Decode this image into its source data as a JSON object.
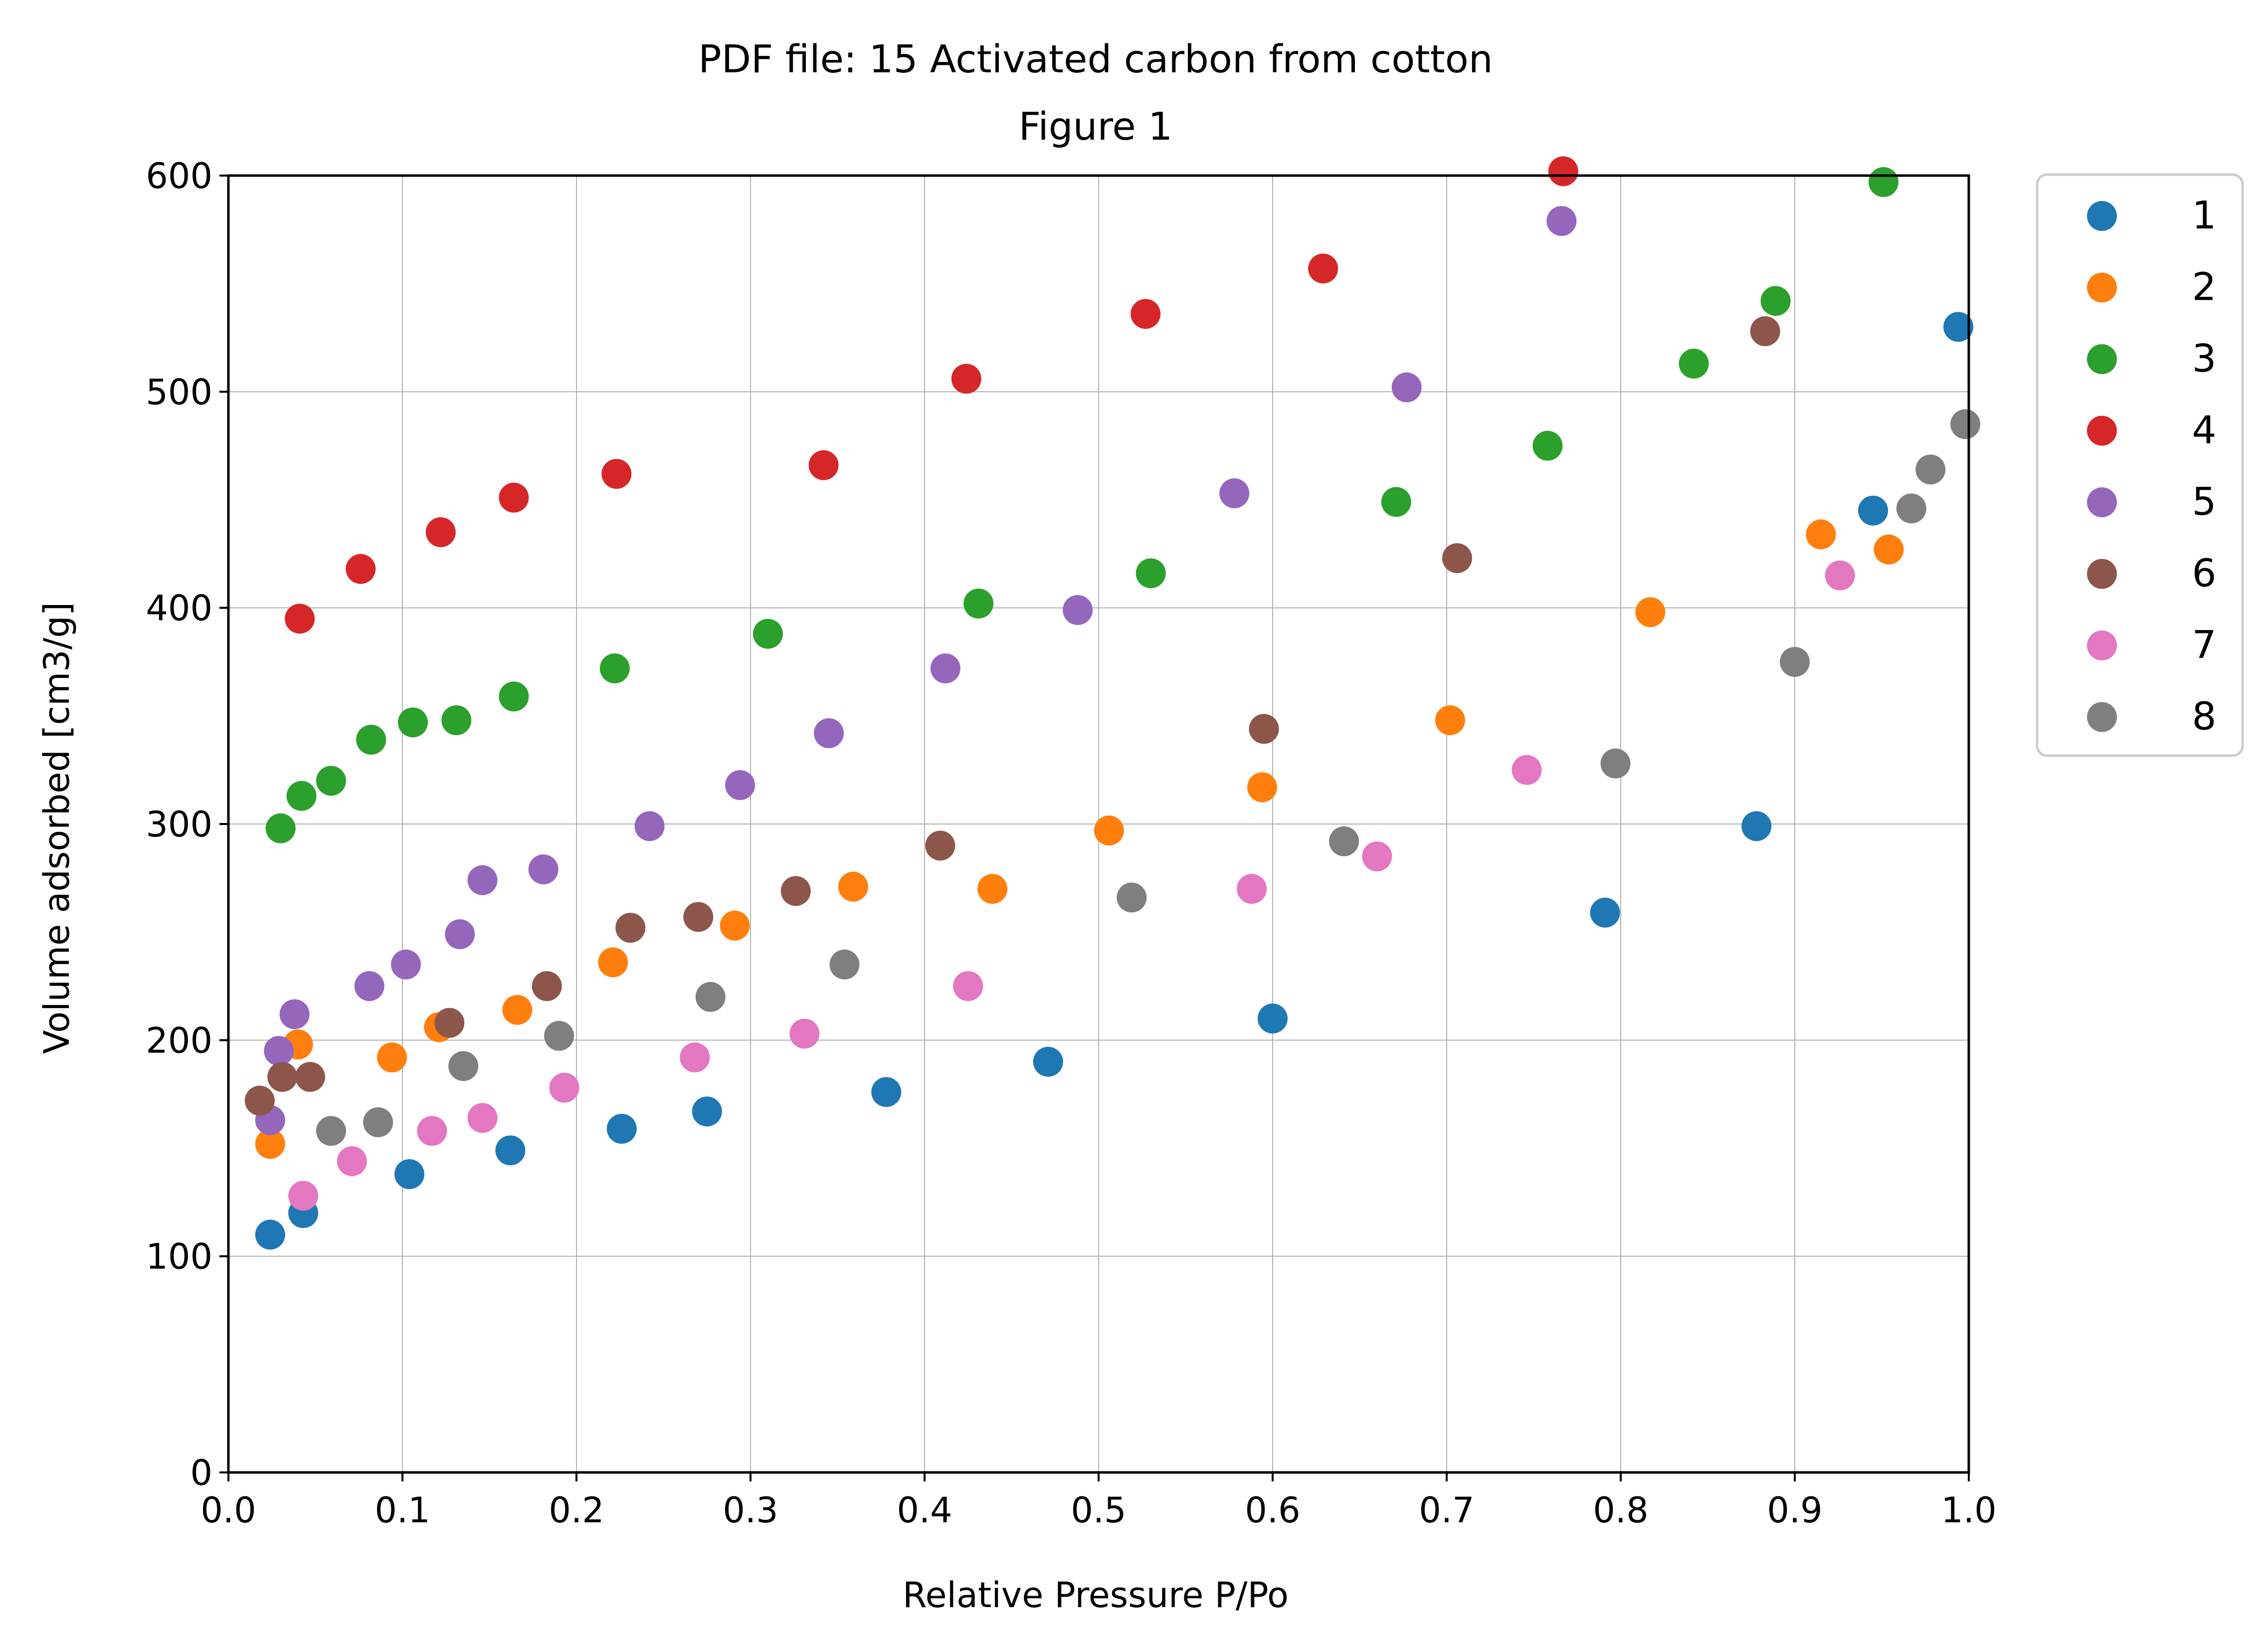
{
  "chart_data": {
    "type": "scatter",
    "title": "PDF file: 15 Activated carbon from cotton",
    "subtitle": "Figure 1",
    "xlabel": "Relative Pressure P/Po",
    "ylabel": "Volume adsorbed [cm3/g]",
    "xlim": [
      0.0,
      1.0
    ],
    "ylim": [
      0,
      600
    ],
    "xticks": [
      0.0,
      0.1,
      0.2,
      0.3,
      0.4,
      0.5,
      0.6,
      0.7,
      0.8,
      0.9,
      1.0
    ],
    "xtick_labels": [
      "0.0",
      "0.1",
      "0.2",
      "0.3",
      "0.4",
      "0.5",
      "0.6",
      "0.7",
      "0.8",
      "0.9",
      "1.0"
    ],
    "yticks": [
      0,
      100,
      200,
      300,
      400,
      500,
      600
    ],
    "ytick_labels": [
      "0",
      "100",
      "200",
      "300",
      "400",
      "500",
      "600"
    ],
    "grid": true,
    "legend_position": "outside-right-top",
    "series": [
      {
        "name": "1",
        "color": "#1f77b4",
        "x": [
          0.024,
          0.043,
          0.104,
          0.162,
          0.226,
          0.275,
          0.378,
          0.471,
          0.6,
          0.791,
          0.878,
          0.945,
          0.994
        ],
        "y": [
          110,
          120,
          138,
          149,
          159,
          167,
          176,
          190,
          210,
          259,
          299,
          445,
          530
        ]
      },
      {
        "name": "2",
        "color": "#ff7f0e",
        "x": [
          0.024,
          0.04,
          0.094,
          0.121,
          0.166,
          0.221,
          0.291,
          0.359,
          0.439,
          0.506,
          0.594,
          0.702,
          0.817,
          0.915,
          0.954
        ],
        "y": [
          152,
          198,
          192,
          206,
          214,
          236,
          253,
          271,
          270,
          297,
          317,
          348,
          398,
          434,
          427
        ]
      },
      {
        "name": "3",
        "color": "#2ca02c",
        "x": [
          0.03,
          0.042,
          0.059,
          0.082,
          0.106,
          0.131,
          0.164,
          0.222,
          0.31,
          0.431,
          0.53,
          0.671,
          0.758,
          0.842,
          0.889,
          0.951
        ],
        "y": [
          298,
          313,
          320,
          339,
          347,
          348,
          359,
          372,
          388,
          402,
          416,
          449,
          475,
          513,
          542,
          597
        ]
      },
      {
        "name": "4",
        "color": "#d62728",
        "x": [
          0.041,
          0.076,
          0.122,
          0.164,
          0.223,
          0.342,
          0.424,
          0.527,
          0.629,
          0.767
        ],
        "y": [
          395,
          418,
          435,
          451,
          462,
          466,
          506,
          536,
          557,
          602
        ]
      },
      {
        "name": "5",
        "color": "#9467bd",
        "x": [
          0.024,
          0.029,
          0.038,
          0.081,
          0.102,
          0.133,
          0.146,
          0.181,
          0.242,
          0.294,
          0.345,
          0.412,
          0.488,
          0.578,
          0.677,
          0.766
        ],
        "y": [
          163,
          195,
          212,
          225,
          235,
          249,
          274,
          279,
          299,
          318,
          342,
          372,
          399,
          453,
          502,
          579
        ]
      },
      {
        "name": "6",
        "color": "#8c564b",
        "x": [
          0.018,
          0.031,
          0.047,
          0.127,
          0.183,
          0.231,
          0.27,
          0.326,
          0.409,
          0.595,
          0.706,
          0.883
        ],
        "y": [
          172,
          183,
          183,
          208,
          225,
          252,
          257,
          269,
          290,
          344,
          423,
          528
        ]
      },
      {
        "name": "7",
        "color": "#e377c2",
        "x": [
          0.043,
          0.071,
          0.117,
          0.146,
          0.193,
          0.268,
          0.331,
          0.425,
          0.588,
          0.66,
          0.746,
          0.926
        ],
        "y": [
          128,
          144,
          158,
          164,
          178,
          192,
          203,
          225,
          270,
          285,
          325,
          415
        ]
      },
      {
        "name": "8",
        "color": "#7f7f7f",
        "x": [
          0.059,
          0.086,
          0.135,
          0.19,
          0.277,
          0.354,
          0.519,
          0.641,
          0.797,
          0.9,
          0.967,
          0.978,
          0.998
        ],
        "y": [
          158,
          162,
          188,
          202,
          220,
          235,
          266,
          292,
          328,
          375,
          446,
          464,
          485
        ]
      }
    ]
  }
}
